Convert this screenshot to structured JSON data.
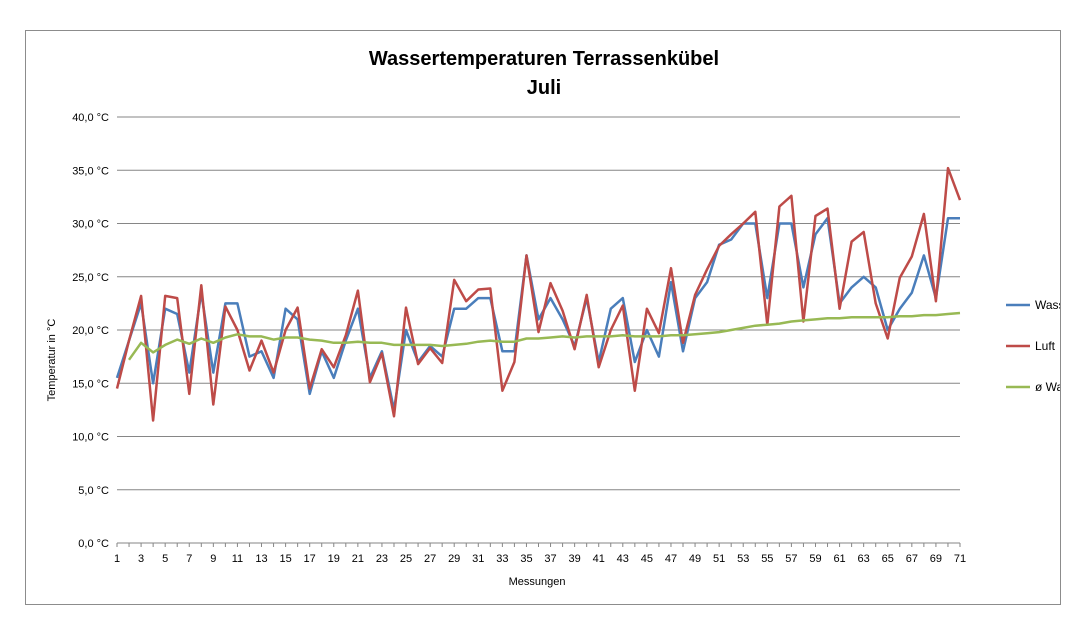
{
  "chart_data": {
    "type": "line",
    "title": "Wassertemperaturen Terrassenkübel",
    "subtitle": "Juli",
    "xlabel": "Messungen",
    "ylabel": "Temperatur in °C",
    "ylim": [
      0,
      40
    ],
    "y_ticks": [
      "0,0 °C",
      "5,0 °C",
      "10,0 °C",
      "15,0 °C",
      "20,0 °C",
      "25,0 °C",
      "30,0 °C",
      "35,0 °C",
      "40,0 °C"
    ],
    "x": [
      1,
      2,
      3,
      4,
      5,
      6,
      7,
      8,
      9,
      10,
      11,
      12,
      13,
      14,
      15,
      16,
      17,
      18,
      19,
      20,
      21,
      22,
      23,
      24,
      25,
      26,
      27,
      28,
      29,
      30,
      31,
      32,
      33,
      34,
      35,
      36,
      37,
      38,
      39,
      40,
      41,
      42,
      43,
      44,
      45,
      46,
      47,
      48,
      49,
      50,
      51,
      52,
      53,
      54,
      55,
      56,
      57,
      58,
      59,
      60,
      61,
      62,
      63,
      64,
      65,
      66,
      67,
      68,
      69,
      70,
      71
    ],
    "x_tick_labels": [
      "1",
      "3",
      "5",
      "7",
      "9",
      "11",
      "13",
      "15",
      "17",
      "19",
      "21",
      "23",
      "25",
      "27",
      "29",
      "31",
      "33",
      "35",
      "37",
      "39",
      "41",
      "43",
      "45",
      "47",
      "49",
      "51",
      "53",
      "55",
      "57",
      "59",
      "61",
      "63",
      "65",
      "67",
      "69",
      "71"
    ],
    "grid": true,
    "legend_position": "right",
    "series": [
      {
        "name": "Wasser",
        "color": "#4a7ebb",
        "values": [
          15.5,
          19,
          22.5,
          15,
          22,
          21.5,
          16,
          23.5,
          16,
          22.5,
          22.5,
          17.5,
          18,
          15.5,
          22,
          21,
          14,
          18,
          15.5,
          19,
          22,
          15.5,
          18,
          12.5,
          20,
          17,
          18.5,
          17.5,
          22,
          22,
          23,
          23,
          18,
          18,
          27,
          21,
          23,
          21,
          18.5,
          23,
          17,
          22,
          23,
          17,
          20,
          17.5,
          24.5,
          18,
          23,
          24.5,
          28,
          28.5,
          30,
          30,
          23,
          30,
          30,
          24,
          29,
          30.5,
          22.5,
          24,
          25,
          24,
          20,
          22,
          23.5,
          27,
          23,
          30.5,
          30.5
        ]
      },
      {
        "name": "Luft",
        "color": "#be4b48",
        "values": [
          14.5,
          19,
          23.2,
          11.5,
          23.2,
          23,
          14,
          24.2,
          13,
          22.2,
          20,
          16.2,
          19,
          16,
          20,
          22.1,
          14.5,
          18.2,
          16.5,
          19.5,
          23.7,
          15.1,
          17.8,
          11.9,
          22.1,
          16.8,
          18.3,
          16.9,
          24.7,
          22.7,
          23.8,
          23.9,
          14.3,
          17,
          27,
          19.8,
          24.4,
          21.8,
          18.2,
          23.3,
          16.5,
          20,
          22.3,
          14.3,
          22,
          19.7,
          25.8,
          18.8,
          23.3,
          25.7,
          27.9,
          29,
          30,
          31.1,
          20.5,
          31.6,
          32.6,
          20.8,
          30.7,
          31.4,
          22,
          28.3,
          29.2,
          22.5,
          19.2,
          24.9,
          26.9,
          30.9,
          22.7,
          35.2,
          32.2
        ]
      },
      {
        "name": "ø Wasser",
        "color": "#98b954",
        "values": [
          null,
          17.2,
          18.8,
          17.9,
          18.6,
          19.1,
          18.7,
          19.2,
          18.8,
          19.3,
          19.6,
          19.4,
          19.4,
          19.1,
          19.3,
          19.3,
          19.1,
          19,
          18.8,
          18.8,
          18.9,
          18.8,
          18.8,
          18.6,
          18.6,
          18.6,
          18.6,
          18.5,
          18.6,
          18.7,
          18.9,
          19,
          18.9,
          18.9,
          19.2,
          19.2,
          19.3,
          19.4,
          19.3,
          19.4,
          19.4,
          19.4,
          19.5,
          19.4,
          19.4,
          19.4,
          19.5,
          19.5,
          19.6,
          19.7,
          19.8,
          20,
          20.2,
          20.4,
          20.5,
          20.6,
          20.8,
          20.9,
          21,
          21.1,
          21.1,
          21.2,
          21.2,
          21.2,
          21.2,
          21.3,
          21.3,
          21.4,
          21.4,
          21.5,
          21.6
        ]
      }
    ]
  }
}
